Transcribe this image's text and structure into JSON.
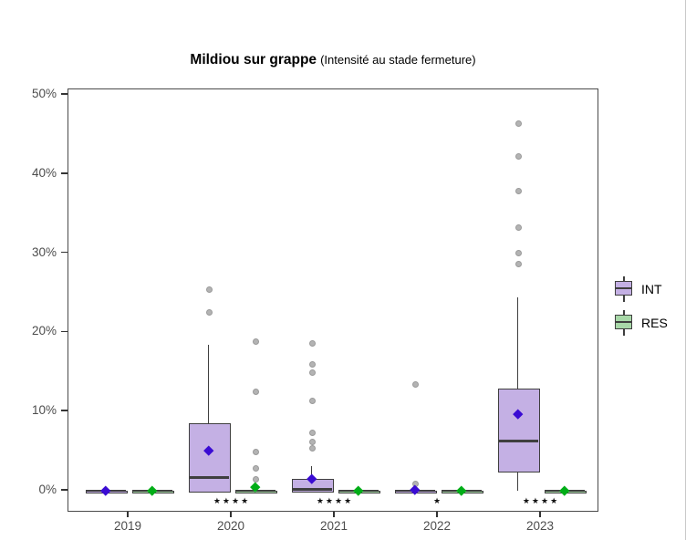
{
  "title": {
    "main": "Mildiou sur grappe",
    "subtitle": "(Intensité au stade fermeture)"
  },
  "chart_data": {
    "type": "boxplot",
    "title": "Mildiou sur grappe",
    "subtitle": "(Intensité au stade fermeture)",
    "x_categories": [
      "2019",
      "2020",
      "2021",
      "2022",
      "2023"
    ],
    "y_tick_labels": [
      "0%",
      "10%",
      "20%",
      "30%",
      "40%",
      "50%"
    ],
    "y_tick_values": [
      0,
      10,
      20,
      30,
      40,
      50
    ],
    "ylim": [
      0,
      50
    ],
    "unit": "percent",
    "grid": "off",
    "legend_position": "right",
    "significance_by_year": [
      "",
      "****",
      "****",
      "*",
      "****"
    ],
    "colors": {
      "box_border": "#3f3f3f",
      "outlier_fill": "#b3b3b3",
      "outlier_edge": "#9a9a9a",
      "axis_text": "#4d4d4d",
      "panel_border": "#4a4a4a",
      "int_fill": "#c4b0e4",
      "res_fill": "#a8d8a8",
      "int_mean": "#3a0bd3",
      "res_mean": "#00ad17"
    },
    "series": [
      {
        "name": "INT",
        "fill": "#c4b0e4",
        "mean_color": "#3a0bd3",
        "side": "left",
        "boxes": [
          {
            "category": "2019",
            "min": 0,
            "q1": 0,
            "median": 0,
            "q3": 0,
            "max": 0,
            "mean": 0,
            "outliers": []
          },
          {
            "category": "2020",
            "min": 0,
            "q1": 0,
            "median": 1.7,
            "q3": 8.5,
            "max": 18.4,
            "mean": 5.1,
            "outliers": [
              25.5,
              22.6
            ]
          },
          {
            "category": "2021",
            "min": 0,
            "q1": 0,
            "median": 0.2,
            "q3": 1.5,
            "max": 3.1,
            "mean": 1.5,
            "outliers": [
              18.7,
              16.1,
              15.0,
              11.5,
              7.4,
              6.3,
              5.5
            ]
          },
          {
            "category": "2022",
            "min": 0,
            "q1": 0,
            "median": 0,
            "q3": 0,
            "max": 0,
            "mean": 0.2,
            "outliers": [
              13.5,
              1.0
            ]
          },
          {
            "category": "2023",
            "min": 0,
            "q1": 2.5,
            "median": 6.3,
            "q3": 12.9,
            "max": 24.4,
            "mean": 9.7,
            "outliers": [
              46.5,
              42.3,
              38.0,
              33.4,
              30.1,
              28.8
            ]
          }
        ]
      },
      {
        "name": "RES",
        "fill": "#a8d8a8",
        "mean_color": "#00ad17",
        "side": "right",
        "boxes": [
          {
            "category": "2019",
            "min": 0,
            "q1": 0,
            "median": 0,
            "q3": 0,
            "max": 0,
            "mean": 0,
            "outliers": []
          },
          {
            "category": "2020",
            "min": 0,
            "q1": 0,
            "median": 0,
            "q3": 0,
            "max": 0,
            "mean": 0.5,
            "outliers": [
              19.0,
              12.6,
              5.0,
              2.9,
              1.6
            ]
          },
          {
            "category": "2021",
            "min": 0,
            "q1": 0,
            "median": 0,
            "q3": 0,
            "max": 0,
            "mean": 0,
            "outliers": []
          },
          {
            "category": "2022",
            "min": 0,
            "q1": 0,
            "median": 0,
            "q3": 0,
            "max": 0,
            "mean": 0,
            "outliers": []
          },
          {
            "category": "2023",
            "min": 0,
            "q1": 0,
            "median": 0,
            "q3": 0,
            "max": 0,
            "mean": 0,
            "outliers": []
          }
        ]
      }
    ]
  }
}
